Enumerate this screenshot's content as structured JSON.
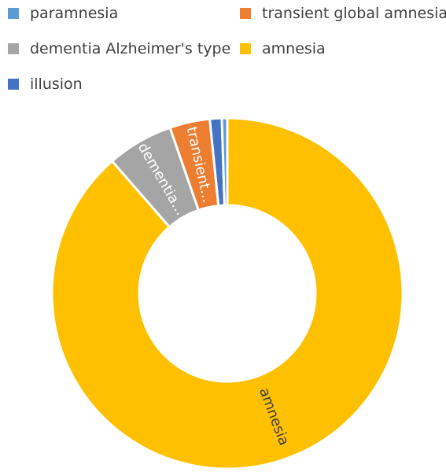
{
  "chart_data": {
    "type": "pie",
    "variant": "donut",
    "title": "",
    "legend_position": "top",
    "legend": [
      {
        "label": "paramnesia",
        "color": "#5B9BD5"
      },
      {
        "label": "transient global amnesia",
        "color": "#ED7D31"
      },
      {
        "label": "dementia Alzheimer's type",
        "color": "#A5A5A5"
      },
      {
        "label": "amnesia",
        "color": "#FFC000"
      },
      {
        "label": "illusion",
        "color": "#4472C4"
      }
    ],
    "slices": [
      {
        "label": "amnesia",
        "value": 88.6,
        "color": "#FFC000",
        "data_label": "amnesia"
      },
      {
        "label": "dementia Alzheimer's type",
        "value": 6.1,
        "color": "#A5A5A5",
        "data_label": "dementia..."
      },
      {
        "label": "transient global amnesia",
        "value": 3.7,
        "color": "#ED7D31",
        "data_label": "transient..."
      },
      {
        "label": "illusion",
        "value": 1.1,
        "color": "#4472C4",
        "data_label": ""
      },
      {
        "label": "paramnesia",
        "value": 0.5,
        "color": "#5B9BD5",
        "data_label": ""
      }
    ]
  }
}
